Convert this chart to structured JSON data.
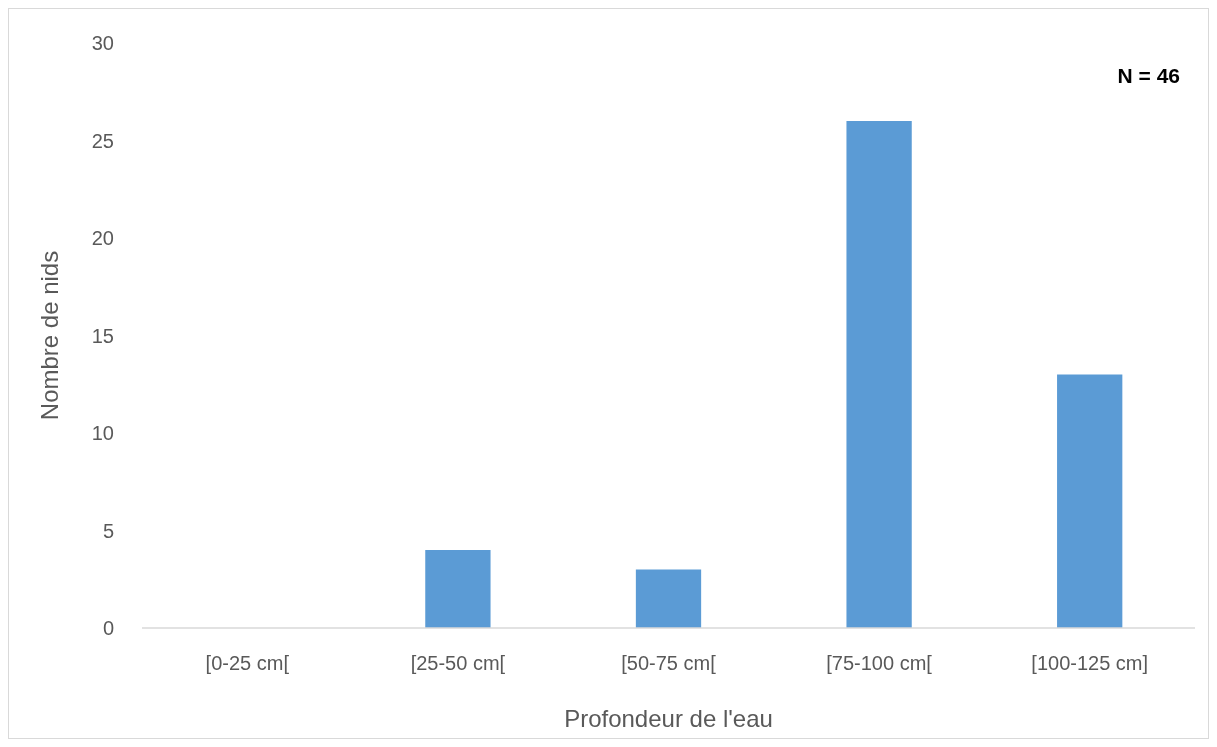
{
  "chart_data": {
    "type": "bar",
    "xlabel": "Profondeur de l'eau",
    "ylabel": "Nombre de nids",
    "categories": [
      "[0-25 cm[",
      "[25-50 cm[",
      "[50-75 cm[",
      "[75-100 cm[",
      "[100-125 cm]"
    ],
    "values": [
      0,
      4,
      3,
      26,
      13
    ],
    "color": "#5b9bd5",
    "ylim": [
      0,
      30
    ],
    "yticks": [
      0,
      5,
      10,
      15,
      20,
      25,
      30
    ],
    "grid": false,
    "annotations": [
      "N = 46"
    ]
  }
}
